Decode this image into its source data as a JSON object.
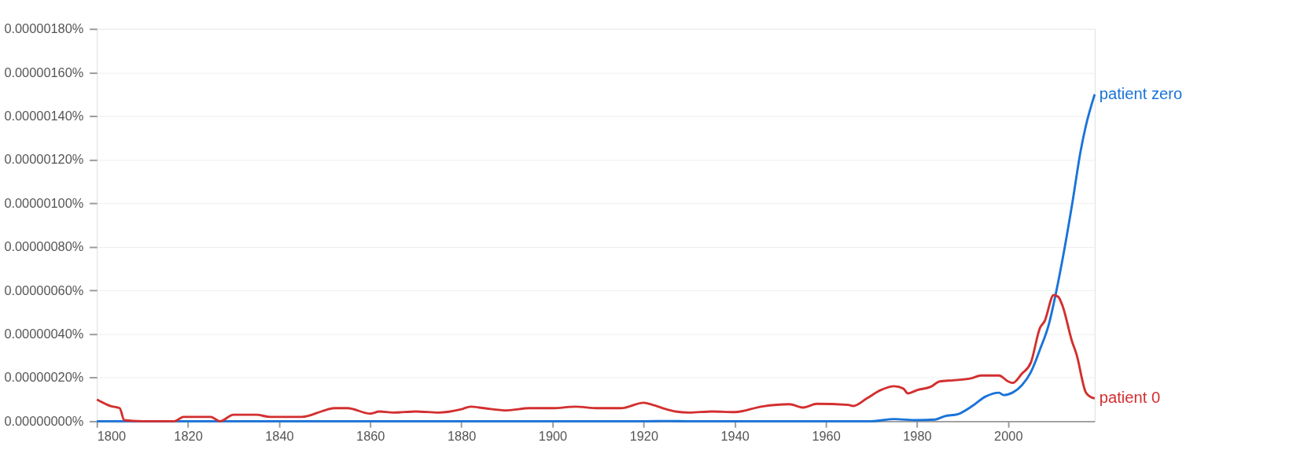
{
  "chart_data": {
    "type": "line",
    "xlim": [
      1800,
      2019
    ],
    "xticks": [
      1800,
      1820,
      1840,
      1860,
      1880,
      1900,
      1920,
      1940,
      1960,
      1980,
      2000
    ],
    "ylim": [
      0,
      1.8e-06
    ],
    "yticks": [
      {
        "value": 0,
        "label": "0.00000000%"
      },
      {
        "value": 2e-07,
        "label": "0.00000020%"
      },
      {
        "value": 4e-07,
        "label": "0.00000040%"
      },
      {
        "value": 6e-07,
        "label": "0.00000060%"
      },
      {
        "value": 8e-07,
        "label": "0.00000080%"
      },
      {
        "value": 1e-06,
        "label": "0.00000100%"
      },
      {
        "value": 1.2e-06,
        "label": "0.00000120%"
      },
      {
        "value": 1.4e-06,
        "label": "0.00000140%"
      },
      {
        "value": 1.6e-06,
        "label": "0.00000160%"
      },
      {
        "value": 1.8e-06,
        "label": "0.00000180%"
      }
    ],
    "grid": "y",
    "line_style": "solid",
    "marker": "none",
    "series": [
      {
        "name": "patient zero",
        "color": "#1a73d9",
        "x": [
          1800,
          1920,
          1925,
          1930,
          1970,
          1975,
          1980,
          1984,
          1986,
          1989,
          1992,
          1995,
          1998,
          1999,
          2001,
          2003,
          2005,
          2007,
          2009,
          2010,
          2012,
          2014,
          2016,
          2017,
          2019
        ],
        "values": [
          0,
          0,
          1e-09,
          0,
          0,
          1e-08,
          5e-09,
          8e-09,
          2.3e-08,
          3.3e-08,
          6.8e-08,
          1.13e-07,
          1.31e-07,
          1.2e-07,
          1.32e-07,
          1.65e-07,
          2.26e-07,
          3.3e-07,
          4.5e-07,
          5.4e-07,
          7.5e-07,
          9.9e-07,
          1.25e-06,
          1.35e-06,
          1.5e-06
        ]
      },
      {
        "name": "patient 0",
        "color": "#d32f2f",
        "x": [
          1800,
          1803,
          1805,
          1806,
          1810,
          1817,
          1819,
          1825,
          1827,
          1830,
          1835,
          1838,
          1840,
          1845,
          1850,
          1852,
          1855,
          1860,
          1862,
          1865,
          1870,
          1875,
          1880,
          1882,
          1885,
          1890,
          1895,
          1900,
          1905,
          1910,
          1915,
          1920,
          1922,
          1925,
          1927,
          1930,
          1935,
          1940,
          1946,
          1952,
          1955,
          1958,
          1965,
          1966,
          1969,
          1972,
          1975,
          1977,
          1978,
          1980,
          1983,
          1985,
          1988,
          1992,
          1994,
          1998,
          2000,
          2001,
          2003,
          2005,
          2007,
          2008,
          2010,
          2011,
          2012,
          2014,
          2015,
          2017,
          2018,
          2019
        ],
        "values": [
          1e-07,
          7e-08,
          6e-08,
          5e-09,
          0,
          0,
          2e-08,
          2e-08,
          0,
          3e-08,
          3e-08,
          2e-08,
          2e-08,
          2e-08,
          5e-08,
          6e-08,
          6e-08,
          3.5e-08,
          4.5e-08,
          4e-08,
          4.5e-08,
          4e-08,
          5.5e-08,
          6.7e-08,
          6e-08,
          5e-08,
          6e-08,
          6e-08,
          6.7e-08,
          6e-08,
          6e-08,
          8.5e-08,
          7.5e-08,
          5.5e-08,
          4.5e-08,
          4e-08,
          4.5e-08,
          4.2e-08,
          6.8e-08,
          7.8e-08,
          6.3e-08,
          8e-08,
          7.5e-08,
          7e-08,
          1.05e-07,
          1.43e-07,
          1.61e-07,
          1.5e-07,
          1.28e-07,
          1.43e-07,
          1.58e-07,
          1.83e-07,
          1.88e-07,
          1.98e-07,
          2.1e-07,
          2.1e-07,
          1.83e-07,
          1.76e-07,
          2.18e-07,
          2.7e-07,
          4.29e-07,
          4.59e-07,
          5.79e-07,
          5.71e-07,
          5.26e-07,
          3.68e-07,
          3.08e-07,
          1.35e-07,
          1.13e-07,
          1.05e-07
        ]
      }
    ]
  }
}
